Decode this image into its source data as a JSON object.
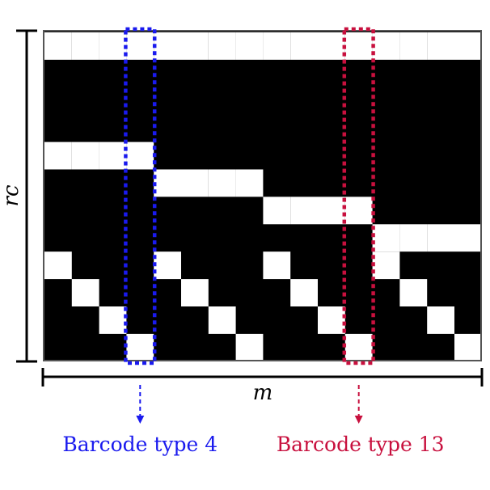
{
  "axes": {
    "vertical_label": "rc",
    "horizontal_label": "m"
  },
  "matrix": {
    "rows": 12,
    "cols": 16,
    "background_color": "#000000",
    "cell_color": "#ffffff",
    "white_cells": [
      [
        0,
        0
      ],
      [
        0,
        1
      ],
      [
        0,
        2
      ],
      [
        0,
        3
      ],
      [
        0,
        4
      ],
      [
        0,
        5
      ],
      [
        0,
        6
      ],
      [
        0,
        7
      ],
      [
        0,
        8
      ],
      [
        0,
        9
      ],
      [
        0,
        10
      ],
      [
        0,
        11
      ],
      [
        0,
        12
      ],
      [
        0,
        13
      ],
      [
        0,
        14
      ],
      [
        0,
        15
      ],
      [
        4,
        0
      ],
      [
        4,
        1
      ],
      [
        4,
        2
      ],
      [
        4,
        3
      ],
      [
        5,
        4
      ],
      [
        5,
        5
      ],
      [
        5,
        6
      ],
      [
        5,
        7
      ],
      [
        6,
        8
      ],
      [
        6,
        9
      ],
      [
        6,
        10
      ],
      [
        6,
        11
      ],
      [
        7,
        12
      ],
      [
        7,
        13
      ],
      [
        7,
        14
      ],
      [
        7,
        15
      ],
      [
        8,
        0
      ],
      [
        9,
        1
      ],
      [
        10,
        2
      ],
      [
        11,
        3
      ],
      [
        8,
        4
      ],
      [
        9,
        5
      ],
      [
        10,
        6
      ],
      [
        11,
        7
      ],
      [
        8,
        8
      ],
      [
        9,
        9
      ],
      [
        10,
        10
      ],
      [
        11,
        11
      ],
      [
        8,
        12
      ],
      [
        9,
        13
      ],
      [
        10,
        14
      ],
      [
        11,
        15
      ]
    ]
  },
  "highlights": [
    {
      "column": 3,
      "color": "#1a1aee",
      "label": "Barcode type 4"
    },
    {
      "column": 11,
      "color": "#c8103e",
      "label": "Barcode type 13"
    }
  ]
}
